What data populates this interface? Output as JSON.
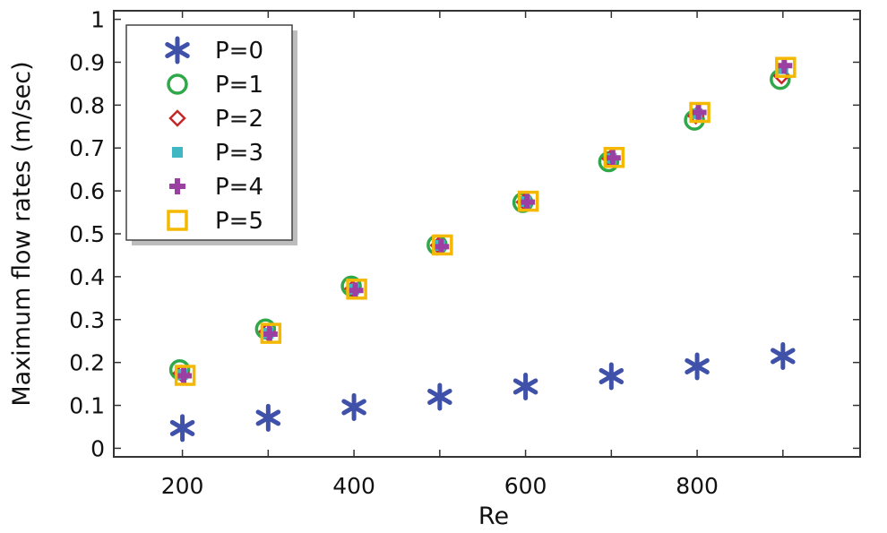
{
  "chart_data": {
    "type": "scatter",
    "title": "",
    "xlabel": "Re",
    "ylabel": "Maximum flow rates (m/sec)",
    "xlim": [
      120,
      990
    ],
    "ylim": [
      -0.02,
      1.02
    ],
    "xticks": [
      200,
      400,
      600,
      800
    ],
    "xtick_labels": [
      "200",
      "400",
      "600",
      "800"
    ],
    "yticks": [
      0,
      0.1,
      0.2,
      0.3,
      0.4,
      0.5,
      0.6,
      0.7,
      0.8,
      0.9,
      1
    ],
    "ytick_labels": [
      "0",
      "0.1",
      "0.2",
      "0.3",
      "0.4",
      "0.5",
      "0.6",
      "0.7",
      "0.8",
      "0.9",
      "1"
    ],
    "grid": false,
    "legend_position": "top-left",
    "x": [
      200,
      300,
      400,
      500,
      600,
      700,
      800,
      900
    ],
    "series": [
      {
        "name": "P=0",
        "marker": "asterisk",
        "color": "#3f51a8",
        "values": [
          0.047,
          0.071,
          0.096,
          0.12,
          0.144,
          0.168,
          0.191,
          0.215
        ]
      },
      {
        "name": "P=1",
        "marker": "circle",
        "color": "#2fa84a",
        "values": [
          0.183,
          0.278,
          0.378,
          0.474,
          0.573,
          0.668,
          0.765,
          0.86
        ]
      },
      {
        "name": "P=2",
        "marker": "diamond",
        "color": "#c62828",
        "values": [
          0.175,
          0.272,
          0.372,
          0.473,
          0.574,
          0.675,
          0.775,
          0.868
        ]
      },
      {
        "name": "P=3",
        "marker": "square-filled",
        "color": "#3fb8c4",
        "values": [
          0.172,
          0.268,
          0.371,
          0.473,
          0.575,
          0.676,
          0.78,
          0.885
        ]
      },
      {
        "name": "P=4",
        "marker": "plus",
        "color": "#9b3fa3",
        "values": [
          0.169,
          0.266,
          0.368,
          0.47,
          0.574,
          0.677,
          0.783,
          0.892
        ]
      },
      {
        "name": "P=5",
        "marker": "square-open",
        "color": "#f5b800",
        "values": [
          0.17,
          0.268,
          0.371,
          0.474,
          0.576,
          0.678,
          0.783,
          0.888
        ]
      }
    ]
  }
}
